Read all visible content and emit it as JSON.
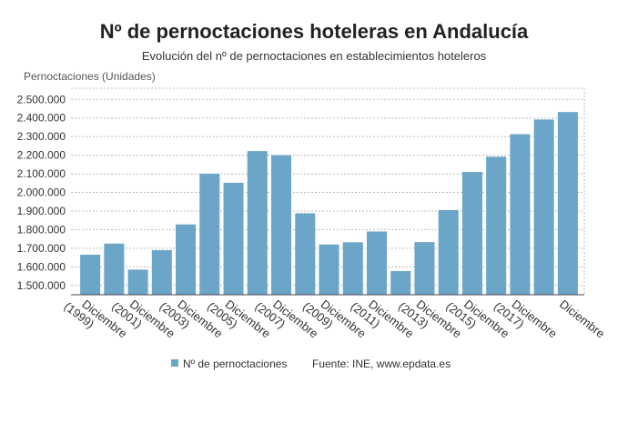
{
  "chart_data": {
    "type": "bar",
    "title": "Nº de pernoctaciones hoteleras en Andalucía",
    "subtitle": "Evolución del nº de pernoctaciones en establecimientos hoteleros",
    "y_label": "Pernoctaciones (Unidades)",
    "source": "Fuente: INE, www.epdata.es",
    "categories": [
      "Diciembre (1999)",
      null,
      "Diciembre (2001)",
      null,
      "Diciembre (2003)",
      null,
      "Diciembre (2005)",
      null,
      "Diciembre (2007)",
      null,
      "Diciembre (2009)",
      null,
      "Diciembre (2011)",
      null,
      "Diciembre (2013)",
      null,
      "Diciembre (2015)",
      null,
      "Diciembre (2017)",
      null,
      "Diciembre"
    ],
    "series": [
      {
        "name": "Nº de pernoctaciones",
        "color": "#6ba5c8",
        "values": [
          1665000,
          1725000,
          1585000,
          1690000,
          1828000,
          2100000,
          2052000,
          2222000,
          2200000,
          1888000,
          1720000,
          1732000,
          1790000,
          1577000,
          1733000,
          1905000,
          2110000,
          2192000,
          2313000,
          2392000,
          2432000
        ]
      }
    ],
    "ylim": [
      1450000,
      2560000
    ],
    "yticks": [
      {
        "value": 1500000,
        "label": "1.500.000"
      },
      {
        "value": 1600000,
        "label": "1.600.000"
      },
      {
        "value": 1700000,
        "label": "1.700.000"
      },
      {
        "value": 1800000,
        "label": "1.800.000"
      },
      {
        "value": 1900000,
        "label": "1.900.000"
      },
      {
        "value": 2000000,
        "label": "2.000.000"
      },
      {
        "value": 2100000,
        "label": "2.100.000"
      },
      {
        "value": 2200000,
        "label": "2.200.000"
      },
      {
        "value": 2300000,
        "label": "2.300.000"
      },
      {
        "value": 2400000,
        "label": "2.400.000"
      },
      {
        "value": 2500000,
        "label": "2.500.000"
      }
    ],
    "grid": true
  }
}
